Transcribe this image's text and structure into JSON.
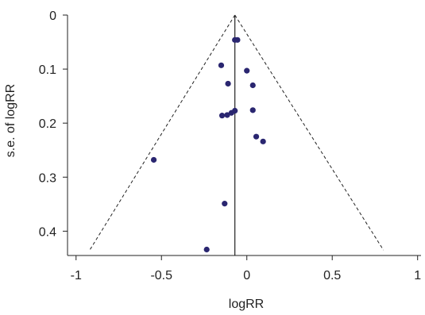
{
  "chart_data": {
    "type": "scatter",
    "title": "",
    "xlabel": "logRR",
    "ylabel": "s.e. of logRR",
    "xlim": [
      -1.05,
      1.02
    ],
    "ylim": [
      0,
      0.445
    ],
    "y_inverted": true,
    "grid": false,
    "xticks": [
      -1,
      -0.5,
      0,
      0.5,
      1
    ],
    "xtick_labels": [
      "-1",
      "-0.5",
      "0",
      "0.5",
      "1"
    ],
    "yticks": [
      0,
      0.1,
      0.2,
      0.3,
      0.4
    ],
    "ytick_labels": [
      "0",
      "0.1",
      "0.2",
      "0.3",
      "0.4"
    ],
    "pooled_estimate": -0.07,
    "funnel_lines": {
      "apex": [
        -0.07,
        0
      ],
      "left_end": [
        -0.92,
        0.435
      ],
      "right_end": [
        0.8,
        0.435
      ]
    },
    "point_color": "#2a2670",
    "series": [
      {
        "points": [
          {
            "x": -0.07,
            "y": 0.046
          },
          {
            "x": -0.055,
            "y": 0.046
          },
          {
            "x": -0.15,
            "y": 0.093
          },
          {
            "x": 0.0,
            "y": 0.103
          },
          {
            "x": -0.11,
            "y": 0.127
          },
          {
            "x": 0.035,
            "y": 0.13
          },
          {
            "x": 0.035,
            "y": 0.176
          },
          {
            "x": -0.07,
            "y": 0.177
          },
          {
            "x": -0.09,
            "y": 0.181
          },
          {
            "x": -0.115,
            "y": 0.185
          },
          {
            "x": -0.145,
            "y": 0.186
          },
          {
            "x": 0.055,
            "y": 0.225
          },
          {
            "x": 0.095,
            "y": 0.234
          },
          {
            "x": -0.545,
            "y": 0.268
          },
          {
            "x": -0.13,
            "y": 0.349
          },
          {
            "x": -0.235,
            "y": 0.434
          }
        ]
      }
    ]
  }
}
